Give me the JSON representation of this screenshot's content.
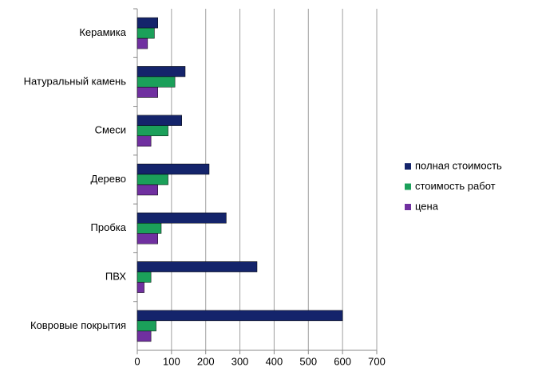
{
  "chart_data": {
    "type": "barh",
    "categories": [
      "Керамика",
      "Натуральный камень",
      "Смеси",
      "Дерево",
      "Пробка",
      "ПВХ",
      "Ковровые покрытия"
    ],
    "series": [
      {
        "name": "полная стоимость",
        "color": "#14246b",
        "values": [
          60,
          140,
          130,
          210,
          260,
          350,
          600
        ]
      },
      {
        "name": "стоимость работ",
        "color": "#1ba05a",
        "values": [
          50,
          110,
          90,
          90,
          70,
          40,
          55
        ]
      },
      {
        "name": "цена",
        "color": "#7030a0",
        "values": [
          30,
          60,
          40,
          60,
          60,
          20,
          40
        ]
      }
    ],
    "xlim": [
      0,
      700
    ],
    "xticks": [
      0,
      100,
      200,
      300,
      400,
      500,
      600,
      700
    ],
    "grid": true,
    "legend": "right"
  }
}
